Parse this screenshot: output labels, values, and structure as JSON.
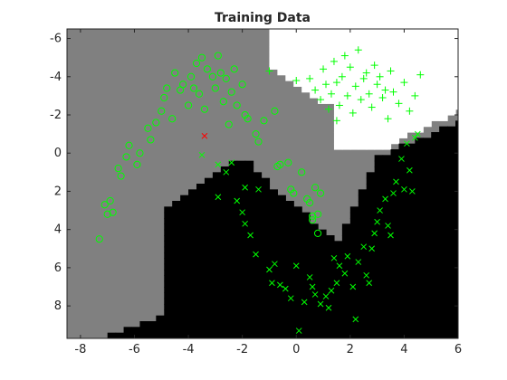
{
  "chart_data": {
    "type": "scatter",
    "title": "Training Data",
    "xlabel": "",
    "ylabel": "",
    "xlim": [
      -8.5,
      6
    ],
    "ylim": [
      -6.5,
      9.7
    ],
    "y_reversed": true,
    "grid": false,
    "x_ticks": [
      -8,
      -6,
      -4,
      -2,
      0,
      2,
      4,
      6
    ],
    "y_ticks": [
      -6,
      -4,
      -2,
      0,
      2,
      4,
      6,
      8
    ],
    "region_colors": {
      "gray": "#808080",
      "white": "#ffffff",
      "black": "#000000"
    },
    "series": [
      {
        "marker": "circle",
        "color": "#00ff00",
        "points": [
          [
            -7.1,
            2.7
          ],
          [
            -7.0,
            3.2
          ],
          [
            -6.9,
            2.5
          ],
          [
            -6.8,
            3.1
          ],
          [
            -6.5,
            1.2
          ],
          [
            -6.6,
            0.8
          ],
          [
            -6.3,
            0.2
          ],
          [
            -6.2,
            -0.4
          ],
          [
            -5.9,
            0.6
          ],
          [
            -5.8,
            0.0
          ],
          [
            -5.5,
            -1.3
          ],
          [
            -5.4,
            -0.7
          ],
          [
            -5.2,
            -1.6
          ],
          [
            -5.0,
            -2.2
          ],
          [
            -4.9,
            -2.9
          ],
          [
            -4.8,
            -3.4
          ],
          [
            -4.6,
            -1.8
          ],
          [
            -4.5,
            -4.2
          ],
          [
            -4.3,
            -3.3
          ],
          [
            -4.2,
            -3.6
          ],
          [
            -4.0,
            -2.5
          ],
          [
            -3.9,
            -4.0
          ],
          [
            -3.8,
            -3.4
          ],
          [
            -3.7,
            -4.7
          ],
          [
            -3.6,
            -3.1
          ],
          [
            -3.5,
            -5.0
          ],
          [
            -3.4,
            -2.3
          ],
          [
            -3.3,
            -4.4
          ],
          [
            -3.1,
            -4.0
          ],
          [
            -3.0,
            -3.4
          ],
          [
            -2.9,
            -5.1
          ],
          [
            -2.8,
            -4.2
          ],
          [
            -2.7,
            -2.7
          ],
          [
            -2.6,
            -3.9
          ],
          [
            -2.5,
            -1.5
          ],
          [
            -2.4,
            -3.2
          ],
          [
            -2.3,
            -4.4
          ],
          [
            -2.2,
            -2.5
          ],
          [
            -2.0,
            -3.6
          ],
          [
            -1.9,
            -2.0
          ],
          [
            -1.8,
            -1.8
          ],
          [
            -1.5,
            -1.0
          ],
          [
            -1.4,
            -0.6
          ],
          [
            -1.2,
            -1.7
          ],
          [
            -0.8,
            -2.2
          ],
          [
            -0.7,
            0.7
          ],
          [
            -0.6,
            0.6
          ],
          [
            -0.3,
            0.5
          ],
          [
            -0.2,
            1.9
          ],
          [
            -0.1,
            2.1
          ],
          [
            0.2,
            1.0
          ],
          [
            0.4,
            2.4
          ],
          [
            0.5,
            2.6
          ],
          [
            0.6,
            3.3
          ],
          [
            0.6,
            3.5
          ],
          [
            0.8,
            3.2
          ],
          [
            0.8,
            4.2
          ],
          [
            0.9,
            2.1
          ],
          [
            0.7,
            1.8
          ],
          [
            -7.3,
            4.5
          ]
        ]
      },
      {
        "marker": "cross",
        "color": "#00ff00",
        "points": [
          [
            -3.5,
            0.1
          ],
          [
            -2.9,
            0.6
          ],
          [
            -2.6,
            1.0
          ],
          [
            -2.4,
            0.5
          ],
          [
            -1.9,
            1.8
          ],
          [
            -1.4,
            1.9
          ],
          [
            -2.9,
            2.3
          ],
          [
            -2.2,
            2.5
          ],
          [
            -2.0,
            3.1
          ],
          [
            -1.9,
            3.7
          ],
          [
            -1.7,
            4.3
          ],
          [
            -1.5,
            5.3
          ],
          [
            -1.0,
            6.1
          ],
          [
            -0.8,
            5.8
          ],
          [
            -0.6,
            6.9
          ],
          [
            -0.4,
            7.1
          ],
          [
            -0.2,
            7.6
          ],
          [
            0.1,
            9.3
          ],
          [
            0.3,
            7.8
          ],
          [
            0.5,
            6.5
          ],
          [
            0.6,
            7.0
          ],
          [
            0.7,
            7.4
          ],
          [
            0.9,
            7.9
          ],
          [
            1.1,
            7.5
          ],
          [
            1.2,
            8.1
          ],
          [
            1.4,
            5.5
          ],
          [
            1.5,
            6.8
          ],
          [
            1.6,
            5.9
          ],
          [
            1.8,
            6.3
          ],
          [
            1.9,
            5.4
          ],
          [
            2.1,
            7.0
          ],
          [
            2.2,
            8.7
          ],
          [
            2.3,
            5.7
          ],
          [
            2.5,
            4.9
          ],
          [
            2.6,
            6.4
          ],
          [
            2.8,
            5.0
          ],
          [
            2.9,
            4.2
          ],
          [
            3.0,
            3.6
          ],
          [
            3.1,
            3.0
          ],
          [
            3.3,
            2.4
          ],
          [
            3.4,
            3.8
          ],
          [
            3.6,
            2.1
          ],
          [
            3.7,
            1.5
          ],
          [
            3.9,
            0.3
          ],
          [
            4.0,
            1.9
          ],
          [
            4.1,
            -0.5
          ],
          [
            4.2,
            0.9
          ],
          [
            4.4,
            -0.8
          ],
          [
            4.5,
            -1.0
          ],
          [
            4.3,
            2.0
          ],
          [
            3.5,
            4.3
          ],
          [
            2.7,
            6.8
          ],
          [
            1.3,
            7.2
          ],
          [
            0.0,
            5.9
          ],
          [
            -0.9,
            6.8
          ]
        ]
      },
      {
        "marker": "plus",
        "color": "#00ff00",
        "points": [
          [
            0.0,
            -3.8
          ],
          [
            0.5,
            -3.9
          ],
          [
            0.7,
            -3.3
          ],
          [
            0.9,
            -2.8
          ],
          [
            1.0,
            -4.4
          ],
          [
            1.1,
            -3.6
          ],
          [
            1.2,
            -2.3
          ],
          [
            1.3,
            -3.1
          ],
          [
            1.4,
            -4.8
          ],
          [
            1.5,
            -3.7
          ],
          [
            1.6,
            -2.5
          ],
          [
            1.7,
            -4.0
          ],
          [
            1.8,
            -5.1
          ],
          [
            1.9,
            -3.0
          ],
          [
            2.0,
            -4.5
          ],
          [
            2.1,
            -2.1
          ],
          [
            2.2,
            -3.5
          ],
          [
            2.3,
            -5.4
          ],
          [
            2.4,
            -2.8
          ],
          [
            2.5,
            -3.9
          ],
          [
            2.6,
            -4.2
          ],
          [
            2.7,
            -3.1
          ],
          [
            2.8,
            -2.4
          ],
          [
            2.9,
            -4.6
          ],
          [
            3.0,
            -3.6
          ],
          [
            3.1,
            -4.0
          ],
          [
            3.2,
            -2.9
          ],
          [
            3.3,
            -3.3
          ],
          [
            3.4,
            -1.8
          ],
          [
            3.5,
            -4.3
          ],
          [
            3.6,
            -3.2
          ],
          [
            3.8,
            -2.6
          ],
          [
            4.0,
            -3.7
          ],
          [
            4.2,
            -2.2
          ],
          [
            4.4,
            -3.0
          ],
          [
            4.6,
            -4.1
          ],
          [
            -1.0,
            -4.3
          ],
          [
            1.5,
            -1.7
          ]
        ]
      },
      {
        "marker": "cross",
        "color": "#ff0000",
        "points": [
          [
            -3.4,
            -0.9
          ]
        ]
      }
    ]
  }
}
